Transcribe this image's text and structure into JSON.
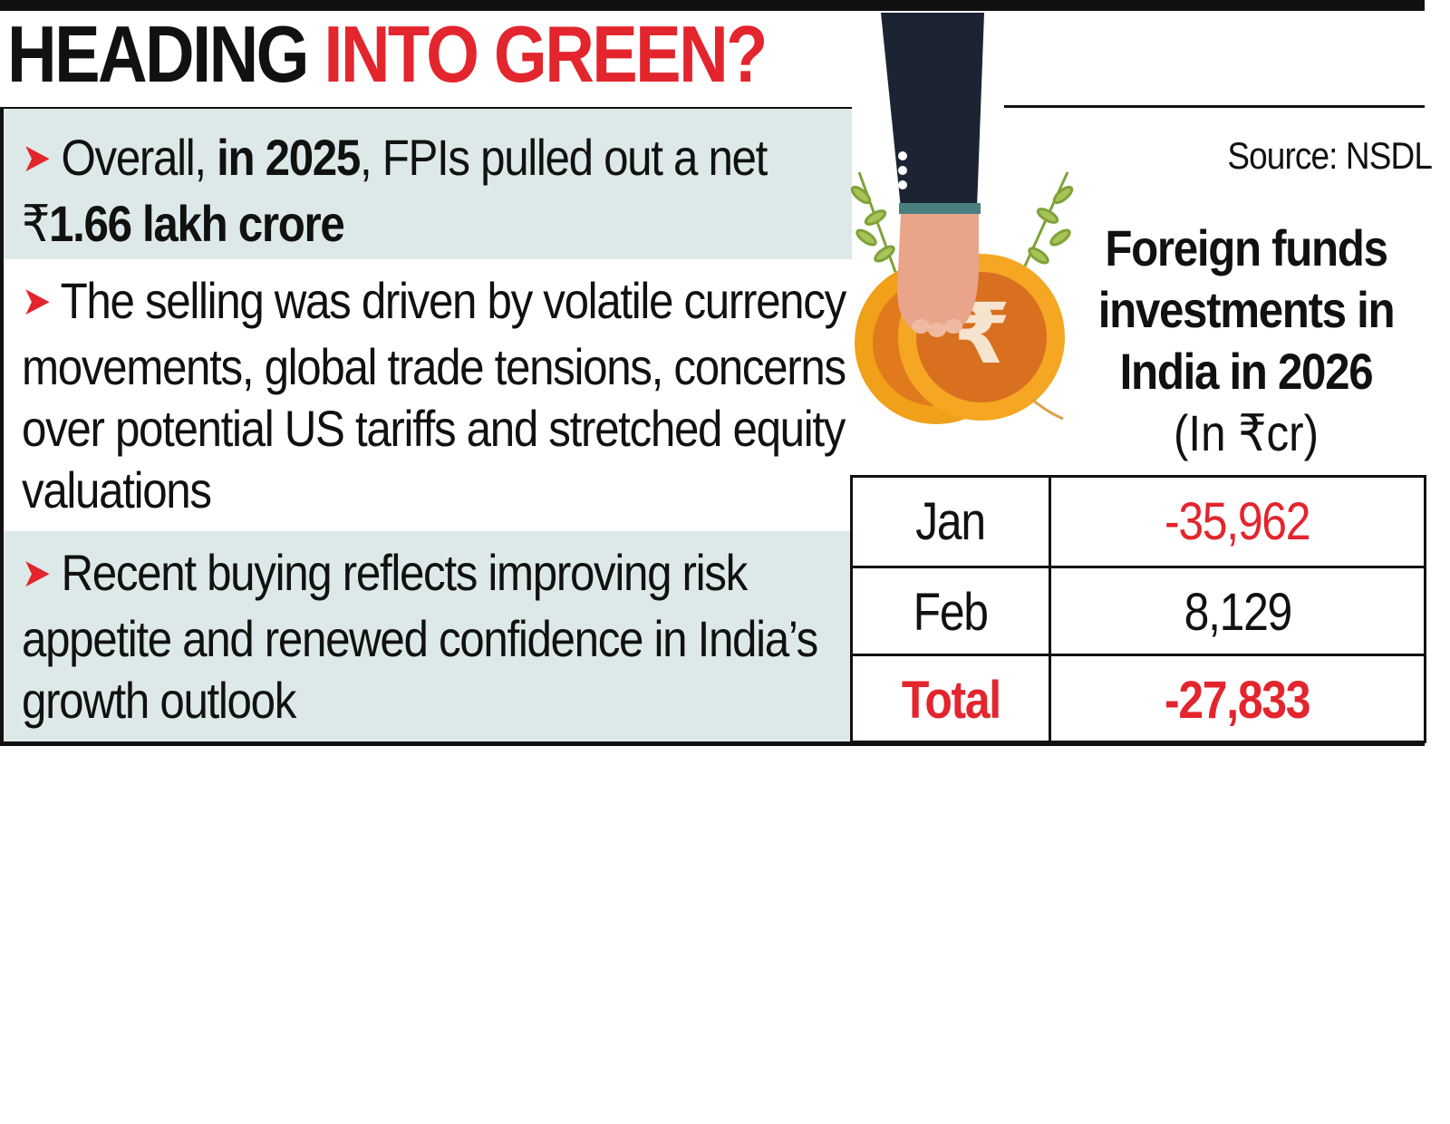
{
  "headline": {
    "part1": "HEADING ",
    "part2": "INTO GREEN?"
  },
  "bullets": [
    {
      "pre": "Overall, ",
      "bold1": "in 2025",
      "mid": ", FPIs pulled out a net ₹",
      "bold2": "1.66 lakh crore"
    },
    {
      "text": "The selling was driven by volatile currency movements, global trade tensions, concerns over potential US tariffs and stretched equity valuations"
    },
    {
      "text": "Recent buying reflects improving risk appetite and renewed confidence in India’s growth outlook"
    }
  ],
  "source": "Source: NSDL",
  "illustration": {
    "coin_symbol": "₹"
  },
  "colors": {
    "accent_red": "#e3252d",
    "panel_tint": "#dde9e8",
    "coin_orange": "#f0a019",
    "sleeve_navy": "#1c2433"
  },
  "chart_data": {
    "type": "table",
    "title": "Foreign funds investments in India in 2026",
    "unit": "(In ₹cr)",
    "categories": [
      "Jan",
      "Feb"
    ],
    "values": [
      -35962,
      8129
    ],
    "display_values": [
      "-35,962",
      "8,129"
    ],
    "total_label": "Total",
    "total_value": -27833,
    "total_display": "-27,833"
  }
}
